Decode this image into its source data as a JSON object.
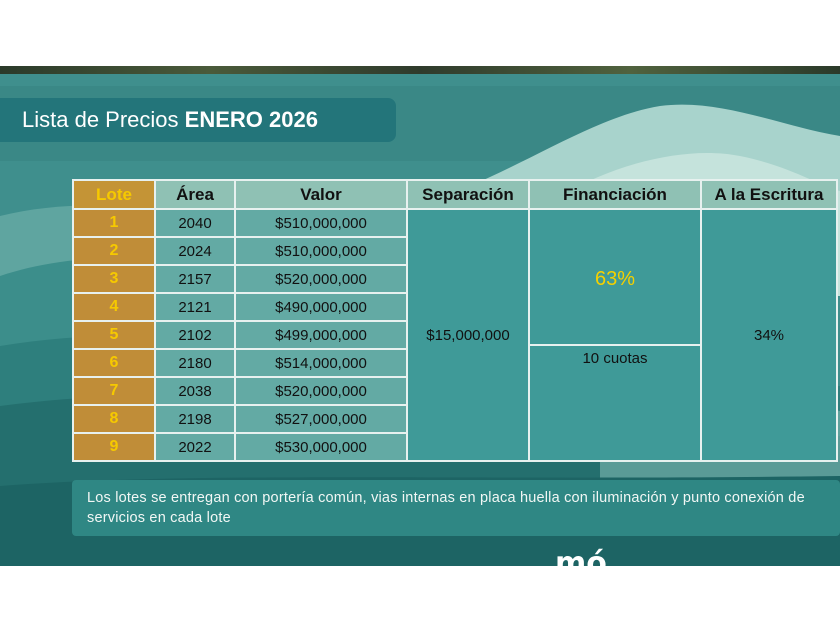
{
  "title": {
    "prefix": "Lista de Precios",
    "month": "ENERO 2026"
  },
  "table": {
    "headers": {
      "lote": "Lote",
      "area": "Área",
      "valor": "Valor",
      "separacion": "Separación",
      "financiacion": "Financiación",
      "escritura": "A la Escritura"
    },
    "rows": [
      {
        "lote": "1",
        "area": "2040",
        "valor": "$510,000,000"
      },
      {
        "lote": "2",
        "area": "2024",
        "valor": "$510,000,000"
      },
      {
        "lote": "3",
        "area": "2157",
        "valor": "$520,000,000"
      },
      {
        "lote": "4",
        "area": "2121",
        "valor": "$490,000,000"
      },
      {
        "lote": "5",
        "area": "2102",
        "valor": "$499,000,000"
      },
      {
        "lote": "6",
        "area": "2180",
        "valor": "$514,000,000"
      },
      {
        "lote": "7",
        "area": "2038",
        "valor": "$520,000,000"
      },
      {
        "lote": "8",
        "area": "2198",
        "valor": "$527,000,000"
      },
      {
        "lote": "9",
        "area": "2022",
        "valor": "$530,000,000"
      }
    ],
    "separacion": "$15,000,000",
    "financiacion_pct": "63%",
    "financiacion_cuotas": "10 cuotas",
    "escritura": "34%"
  },
  "note": "Los lotes se entregan con portería común, vias internas en placa huella con iluminación y punto conexión de servicios en cada lote",
  "logo": "mó"
}
